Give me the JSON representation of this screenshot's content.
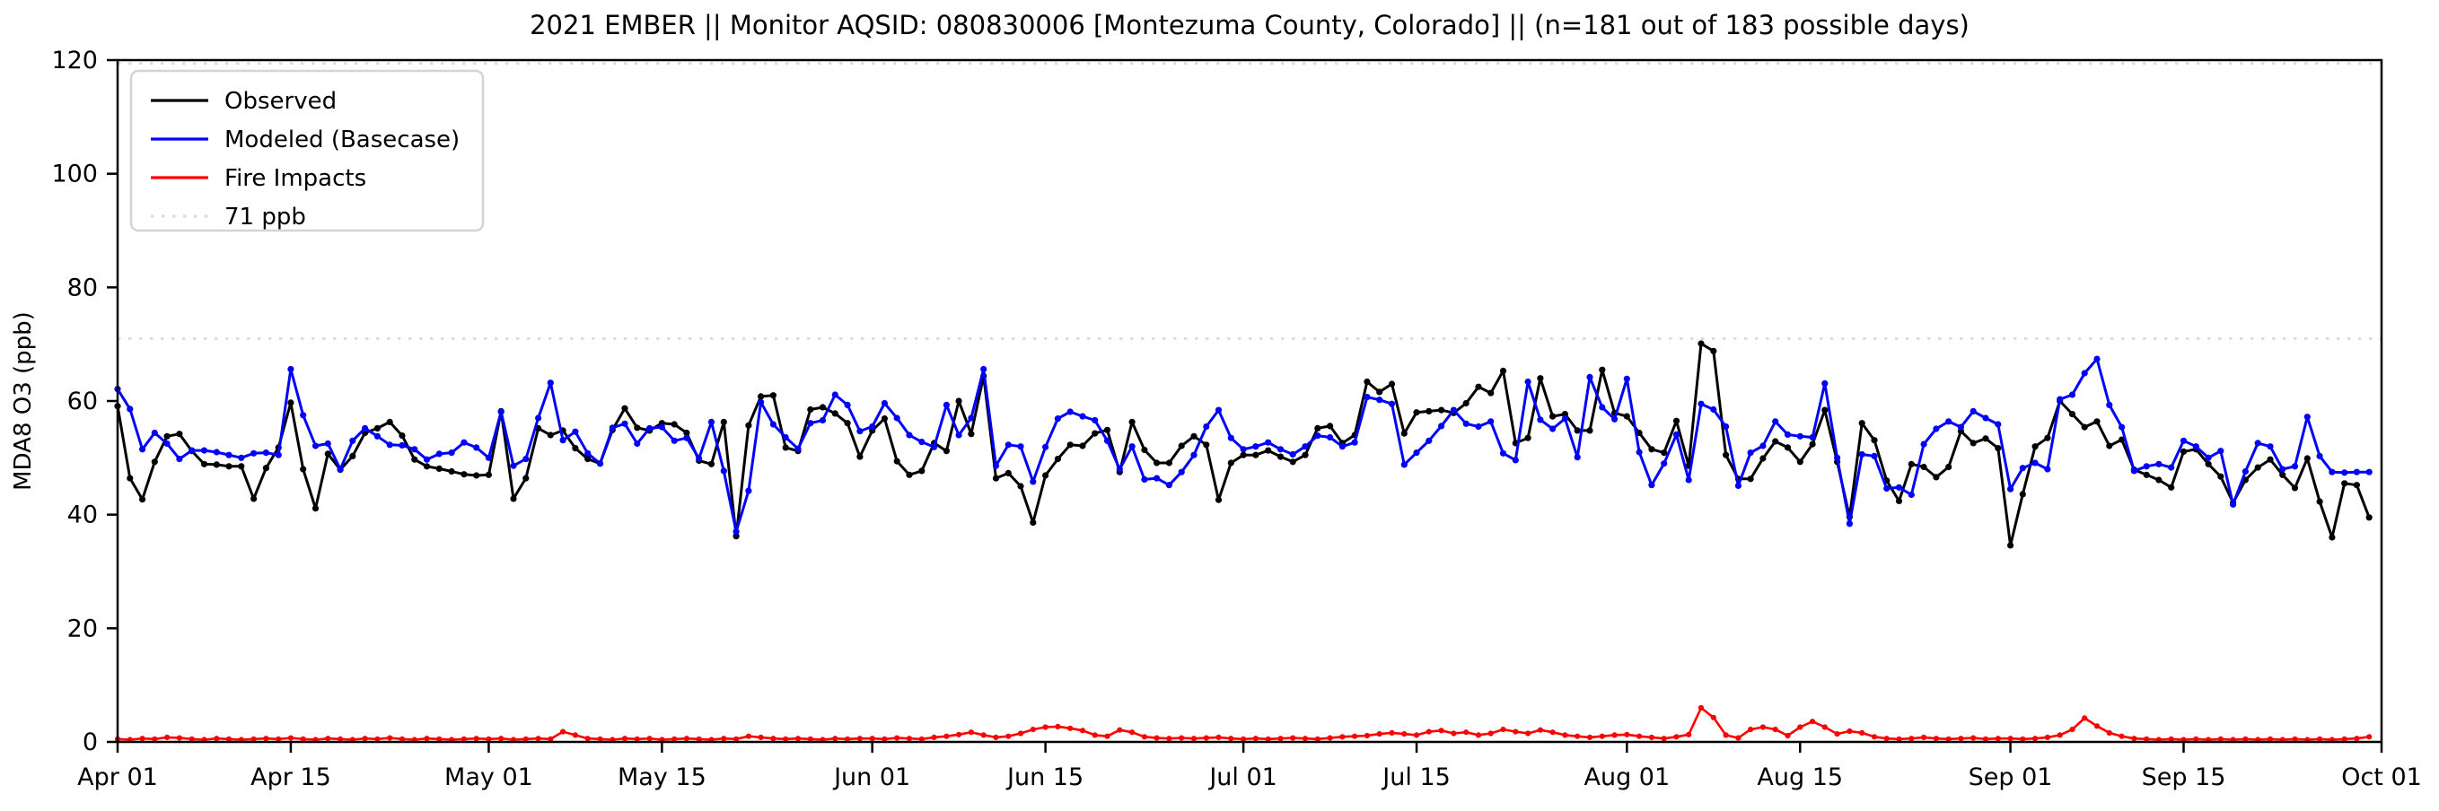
{
  "figure": {
    "title": "2021 EMBER || Monitor AQSID: 080830006 [Montezuma County, Colorado] || (n=181 out of 183 possible days)",
    "background_color": "#ffffff",
    "frame_color": "#000000"
  },
  "chart_data": {
    "type": "line",
    "title": "2021 EMBER || Monitor AQSID: 080830006 [Montezuma County, Colorado] || (n=181 out of 183 possible days)",
    "xlabel": "",
    "ylabel": "MDA8 O3 (ppb)",
    "ylim": [
      0,
      120
    ],
    "y_ticks": [
      0,
      20,
      40,
      60,
      80,
      100,
      120
    ],
    "x_range_days": 183,
    "x_ticks": [
      {
        "label": "Apr 01",
        "day": 0
      },
      {
        "label": "Apr 15",
        "day": 14
      },
      {
        "label": "May 01",
        "day": 30
      },
      {
        "label": "May 15",
        "day": 44
      },
      {
        "label": "Jun 01",
        "day": 61
      },
      {
        "label": "Jun 15",
        "day": 75
      },
      {
        "label": "Jul 01",
        "day": 91
      },
      {
        "label": "Jul 15",
        "day": 105
      },
      {
        "label": "Aug 01",
        "day": 122
      },
      {
        "label": "Aug 15",
        "day": 136
      },
      {
        "label": "Sep 01",
        "day": 153
      },
      {
        "label": "Sep 15",
        "day": 167
      },
      {
        "label": "Oct 01",
        "day": 183
      }
    ],
    "grid": false,
    "legend_position": "upper-left",
    "threshold_line": {
      "label": "71 ppb",
      "value": 71,
      "color": "#dcdcdc",
      "style": "dotted"
    },
    "upper_dotted_line_value": 119.4,
    "series": [
      {
        "name": "Observed",
        "color": "#000000",
        "marker": "circle",
        "values": [
          59.1,
          46.4,
          42.7,
          49.3,
          53.8,
          54.2,
          51.2,
          48.9,
          48.8,
          48.5,
          48.5,
          42.8,
          48.2,
          51.8,
          59.7,
          48.0,
          41.1,
          50.7,
          47.9,
          50.3,
          54.4,
          55.2,
          56.3,
          53.9,
          49.7,
          48.5,
          48.1,
          47.6,
          47.1,
          46.9,
          47.0,
          58.2,
          42.8,
          46.4,
          55.2,
          54.0,
          54.8,
          51.7,
          49.8,
          49.0,
          54.9,
          58.7,
          55.3,
          54.8,
          56.1,
          55.9,
          54.4,
          49.5,
          48.9,
          56.3,
          36.2,
          55.7,
          60.8,
          61.0,
          51.8,
          51.2,
          58.5,
          58.9,
          57.8,
          56.1,
          50.2,
          54.8,
          56.9,
          49.4,
          47.0,
          47.7,
          52.6,
          51.2,
          60.0,
          54.2,
          64.4,
          46.4,
          47.3,
          45.0,
          38.6,
          46.9,
          49.8,
          52.3,
          52.1,
          54.3,
          54.9,
          47.5,
          56.3,
          51.4,
          49.1,
          49.1,
          52.1,
          53.8,
          52.3,
          42.6,
          49.1,
          50.5,
          50.5,
          51.3,
          50.2,
          49.3,
          50.5,
          55.2,
          55.6,
          52.6,
          54.0,
          63.4,
          61.6,
          63.0,
          54.3,
          58.0,
          58.2,
          58.4,
          57.9,
          59.6,
          62.5,
          61.4,
          65.3,
          52.6,
          53.5,
          64.0,
          57.3,
          57.7,
          54.8,
          54.8,
          65.5,
          57.9,
          57.3,
          54.4,
          51.5,
          50.9,
          56.5,
          48.6,
          70.1,
          68.8,
          50.5,
          46.3,
          46.3,
          49.9,
          52.9,
          51.8,
          49.3,
          52.4,
          58.4,
          49.3,
          39.6,
          56.1,
          53.1,
          46.0,
          42.4,
          48.9,
          48.4,
          46.6,
          48.4,
          54.7,
          52.6,
          53.4,
          51.7,
          34.6,
          43.6,
          52.0,
          53.5,
          60.0,
          57.7,
          55.4,
          56.4,
          52.1,
          53.2,
          47.9,
          47.0,
          46.1,
          44.8,
          51.1,
          51.5,
          48.9,
          46.7,
          42.1,
          46.1,
          48.3,
          49.7,
          47.0,
          44.7,
          49.9,
          42.3,
          36.0,
          45.5,
          45.2,
          39.5
        ]
      },
      {
        "name": "Modeled (Basecase)",
        "color": "#0000ff",
        "marker": "circle",
        "values": [
          62.1,
          58.6,
          51.5,
          54.4,
          52.5,
          49.8,
          51.3,
          51.3,
          51.0,
          50.5,
          50.0,
          50.8,
          50.9,
          50.5,
          65.6,
          57.5,
          52.1,
          52.5,
          48.0,
          53.0,
          55.2,
          53.8,
          52.3,
          52.2,
          51.5,
          49.7,
          50.7,
          50.9,
          52.7,
          51.8,
          50.0,
          58.1,
          48.6,
          49.8,
          57.0,
          63.2,
          53.1,
          54.6,
          50.8,
          49.0,
          55.3,
          56.0,
          52.5,
          55.2,
          55.4,
          53.0,
          53.5,
          49.9,
          56.3,
          47.7,
          37.0,
          44.2,
          59.8,
          55.9,
          53.6,
          51.6,
          56.1,
          56.6,
          61.1,
          59.3,
          54.7,
          55.5,
          59.6,
          57.0,
          54.0,
          52.8,
          51.9,
          59.3,
          54.0,
          57.0,
          65.6,
          48.6,
          52.3,
          52.0,
          45.8,
          51.9,
          56.9,
          58.1,
          57.3,
          56.6,
          53.0,
          48.0,
          52.0,
          46.2,
          46.4,
          45.2,
          47.5,
          50.5,
          55.5,
          58.4,
          53.5,
          51.5,
          52.0,
          52.7,
          51.5,
          50.6,
          52.0,
          53.9,
          53.6,
          52.0,
          52.7,
          60.7,
          60.2,
          59.5,
          48.8,
          50.9,
          53.0,
          55.6,
          58.4,
          56.0,
          55.5,
          56.4,
          50.8,
          49.6,
          63.4,
          56.7,
          55.1,
          56.9,
          50.1,
          64.2,
          58.9,
          56.8,
          63.9,
          51.0,
          45.2,
          49.0,
          54.1,
          46.1,
          59.5,
          58.5,
          55.5,
          45.1,
          50.9,
          52.1,
          56.4,
          54.1,
          53.8,
          53.6,
          63.1,
          50.0,
          38.4,
          50.6,
          50.3,
          44.6,
          44.8,
          43.5,
          52.4,
          55.1,
          56.4,
          55.4,
          58.2,
          57.0,
          55.9,
          44.5,
          48.2,
          49.1,
          48.0,
          60.3,
          61.1,
          64.9,
          67.4,
          59.3,
          55.4,
          47.7,
          48.5,
          48.9,
          48.3,
          53.0,
          52.0,
          50.0,
          51.2,
          41.8,
          47.6,
          52.6,
          52.0,
          48.0,
          48.5,
          57.2,
          50.3,
          47.5,
          47.4,
          47.5,
          47.5
        ]
      },
      {
        "name": "Fire Impacts",
        "color": "#ff0000",
        "marker": "circle",
        "values": [
          0.5,
          0.4,
          0.6,
          0.5,
          0.8,
          0.7,
          0.5,
          0.4,
          0.6,
          0.5,
          0.4,
          0.5,
          0.6,
          0.5,
          0.7,
          0.5,
          0.4,
          0.6,
          0.5,
          0.4,
          0.6,
          0.5,
          0.7,
          0.5,
          0.4,
          0.6,
          0.5,
          0.4,
          0.5,
          0.6,
          0.5,
          0.6,
          0.4,
          0.5,
          0.6,
          0.5,
          1.8,
          1.2,
          0.6,
          0.5,
          0.4,
          0.6,
          0.5,
          0.6,
          0.4,
          0.5,
          0.6,
          0.5,
          0.4,
          0.6,
          0.5,
          1.0,
          0.8,
          0.6,
          0.5,
          0.6,
          0.5,
          0.4,
          0.6,
          0.5,
          0.6,
          0.6,
          0.5,
          0.7,
          0.6,
          0.5,
          0.8,
          1.0,
          1.3,
          1.7,
          1.2,
          0.8,
          1.0,
          1.5,
          2.2,
          2.6,
          2.7,
          2.4,
          2.0,
          1.2,
          1.0,
          2.1,
          1.7,
          0.9,
          0.7,
          0.6,
          0.7,
          0.6,
          0.7,
          0.8,
          0.6,
          0.5,
          0.6,
          0.5,
          0.6,
          0.7,
          0.6,
          0.5,
          0.7,
          0.9,
          1.0,
          1.1,
          1.4,
          1.6,
          1.4,
          1.2,
          1.8,
          2.0,
          1.5,
          1.7,
          1.2,
          1.5,
          2.2,
          1.8,
          1.5,
          2.1,
          1.7,
          1.2,
          1.0,
          0.8,
          1.0,
          1.2,
          1.3,
          1.0,
          0.8,
          0.6,
          0.9,
          1.3,
          6.0,
          4.3,
          1.2,
          0.7,
          2.2,
          2.6,
          2.2,
          1.1,
          2.6,
          3.6,
          2.6,
          1.4,
          1.9,
          1.6,
          0.9,
          0.6,
          0.5,
          0.6,
          0.8,
          0.6,
          0.5,
          0.6,
          0.7,
          0.5,
          0.6,
          0.6,
          0.5,
          0.6,
          0.8,
          1.2,
          2.2,
          4.2,
          2.8,
          1.6,
          1.0,
          0.6,
          0.5,
          0.4,
          0.5,
          0.4,
          0.5,
          0.4,
          0.5,
          0.4,
          0.5,
          0.4,
          0.5,
          0.4,
          0.5,
          0.4,
          0.5,
          0.4,
          0.5,
          0.6,
          0.9
        ]
      }
    ]
  }
}
